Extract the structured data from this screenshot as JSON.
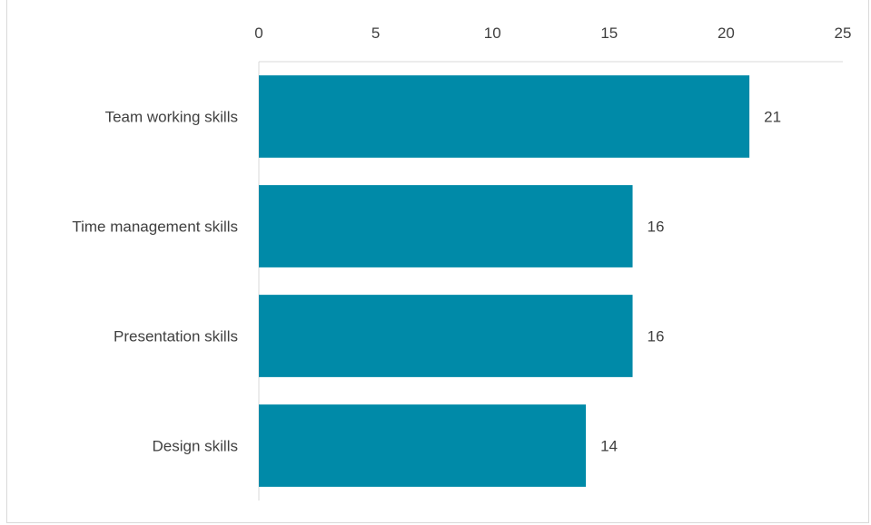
{
  "chart_data": {
    "type": "bar",
    "orientation": "horizontal",
    "categories": [
      "Team working skills",
      "Time management skills",
      "Presentation skills",
      "Design skills"
    ],
    "values": [
      21,
      16,
      16,
      14
    ],
    "data_labels": [
      "21",
      "16",
      "16",
      "14"
    ],
    "xlim": [
      0,
      25
    ],
    "x_ticks": [
      0,
      5,
      10,
      15,
      20,
      25
    ],
    "x_tick_labels": [
      "0",
      "5",
      "10",
      "15",
      "20",
      "25"
    ],
    "x_axis_position": "top",
    "grid": false,
    "legend": "none",
    "bar_color": "#008aa8"
  }
}
